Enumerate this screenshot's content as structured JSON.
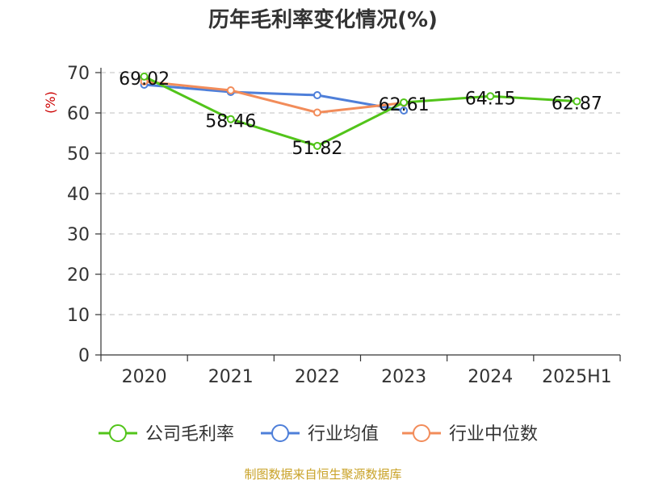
{
  "chart_data": {
    "type": "line",
    "title": "历年毛利率变化情况(%)",
    "ylabel": "(%)",
    "xlabel": "",
    "categories": [
      "2020",
      "2021",
      "2022",
      "2023",
      "2024",
      "2025H1"
    ],
    "ylim": [
      0,
      70
    ],
    "yticks": [
      0,
      10,
      20,
      30,
      40,
      50,
      60,
      70
    ],
    "grid": true,
    "legend_position": "bottom",
    "series": [
      {
        "name": "公司毛利率",
        "color": "#52c41a",
        "values": [
          69.02,
          58.46,
          51.82,
          62.61,
          64.15,
          62.87
        ],
        "labels": [
          "69.02",
          "58.46",
          "51.82",
          "62.61",
          "64.15",
          "62.87"
        ]
      },
      {
        "name": "行业均值",
        "color": "#4e7fd9",
        "values": [
          67.0,
          65.2,
          64.4,
          60.6,
          null,
          null
        ]
      },
      {
        "name": "行业中位数",
        "color": "#f28c5a",
        "values": [
          67.8,
          65.6,
          60.1,
          62.5,
          null,
          null
        ]
      }
    ]
  },
  "footer": {
    "source": "制图数据来自恒生聚源数据库"
  }
}
